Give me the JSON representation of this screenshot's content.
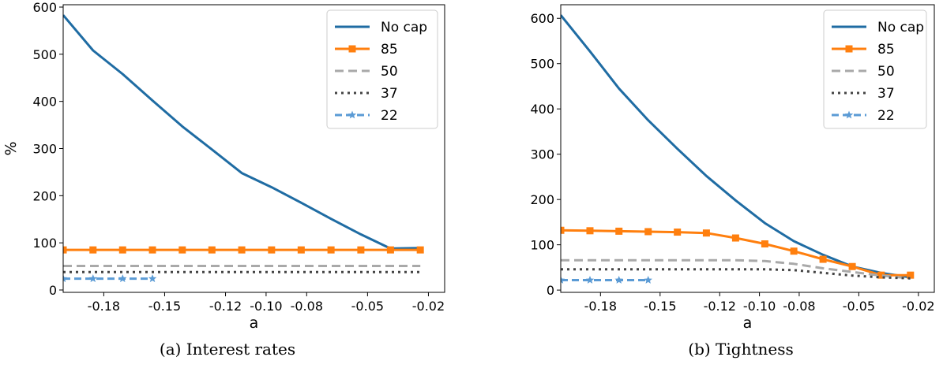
{
  "chart_data": [
    {
      "type": "line",
      "caption": "(a) Interest rates",
      "xlabel": "a",
      "ylabel": "%",
      "xlim": [
        -0.2,
        -0.012
      ],
      "ylim": [
        -5,
        605
      ],
      "xticks": [
        -0.18,
        -0.15,
        -0.12,
        -0.1,
        -0.08,
        -0.05,
        -0.02
      ],
      "xtick_labels": [
        "-0.18",
        "-0.15",
        "-0.12",
        "-0.10",
        "-0.08",
        "-0.05",
        "-0.02"
      ],
      "yticks": [
        0,
        100,
        200,
        300,
        400,
        500,
        600
      ],
      "ytick_labels": [
        "0",
        "100",
        "200",
        "300",
        "400",
        "500",
        "600"
      ],
      "legend_position": "top-right",
      "series": [
        {
          "name": "No cap",
          "color": "#1f6ca3",
          "style": "solid",
          "marker": "none",
          "x": [
            -0.2,
            -0.1853,
            -0.1707,
            -0.156,
            -0.1413,
            -0.1267,
            -0.112,
            -0.0973,
            -0.0827,
            -0.068,
            -0.0533,
            -0.0387,
            -0.024
          ],
          "y": [
            583,
            508,
            458,
            402,
            347,
            298,
            248,
            218,
            185,
            151,
            118,
            88,
            89
          ]
        },
        {
          "name": "85",
          "color": "#ff7f0e",
          "style": "solid",
          "marker": "square",
          "x": [
            -0.2,
            -0.1853,
            -0.1707,
            -0.156,
            -0.1413,
            -0.1267,
            -0.112,
            -0.0973,
            -0.0827,
            -0.068,
            -0.0533,
            -0.0387,
            -0.024
          ],
          "y": [
            85,
            85,
            85,
            85,
            85,
            85,
            85,
            85,
            85,
            85,
            85,
            85,
            85
          ]
        },
        {
          "name": "50",
          "color": "#a9a9a9",
          "style": "dashed",
          "marker": "none",
          "x": [
            -0.2,
            -0.024
          ],
          "y": [
            51,
            51
          ]
        },
        {
          "name": "37",
          "color": "#444444",
          "style": "dotted",
          "marker": "none",
          "x": [
            -0.2,
            -0.024
          ],
          "y": [
            38,
            38
          ]
        },
        {
          "name": "22",
          "color": "#5b9bd5",
          "style": "dashdot",
          "marker": "star",
          "x": [
            -0.2,
            -0.1853,
            -0.1707,
            -0.156
          ],
          "y": [
            24,
            24,
            24,
            24
          ]
        }
      ]
    },
    {
      "type": "line",
      "caption": "(b) Tightness",
      "xlabel": "a",
      "ylabel": "",
      "xlim": [
        -0.2,
        -0.012
      ],
      "ylim": [
        -5,
        630
      ],
      "xticks": [
        -0.18,
        -0.15,
        -0.12,
        -0.1,
        -0.08,
        -0.05,
        -0.02
      ],
      "xtick_labels": [
        "-0.18",
        "-0.15",
        "-0.12",
        "-0.10",
        "-0.08",
        "-0.05",
        "-0.02"
      ],
      "yticks": [
        0,
        100,
        200,
        300,
        400,
        500,
        600
      ],
      "ytick_labels": [
        "0",
        "100",
        "200",
        "300",
        "400",
        "500",
        "600"
      ],
      "legend_position": "top-right",
      "series": [
        {
          "name": "No cap",
          "color": "#1f6ca3",
          "style": "solid",
          "marker": "none",
          "x": [
            -0.2,
            -0.1853,
            -0.1707,
            -0.156,
            -0.1413,
            -0.1267,
            -0.112,
            -0.0973,
            -0.0827,
            -0.068,
            -0.0533,
            -0.0387,
            -0.024
          ],
          "y": [
            607,
            527,
            445,
            375,
            312,
            252,
            198,
            148,
            108,
            78,
            52,
            38,
            28
          ]
        },
        {
          "name": "85",
          "color": "#ff7f0e",
          "style": "solid",
          "marker": "square",
          "x": [
            -0.2,
            -0.1853,
            -0.1707,
            -0.156,
            -0.1413,
            -0.1267,
            -0.112,
            -0.0973,
            -0.0827,
            -0.068,
            -0.0533,
            -0.0387,
            -0.024
          ],
          "y": [
            132,
            131,
            130,
            129,
            128,
            126,
            115,
            102,
            86,
            68,
            52,
            33,
            33
          ]
        },
        {
          "name": "50",
          "color": "#a9a9a9",
          "style": "dashed",
          "marker": "none",
          "x": [
            -0.2,
            -0.1853,
            -0.1707,
            -0.156,
            -0.1413,
            -0.1267,
            -0.112,
            -0.0973,
            -0.0827,
            -0.068,
            -0.0533,
            -0.0387,
            -0.024
          ],
          "y": [
            66,
            66,
            66,
            66,
            66,
            66,
            66,
            64,
            58,
            48,
            40,
            32,
            26
          ]
        },
        {
          "name": "37",
          "color": "#444444",
          "style": "dotted",
          "marker": "none",
          "x": [
            -0.2,
            -0.1853,
            -0.1707,
            -0.156,
            -0.1413,
            -0.1267,
            -0.112,
            -0.0973,
            -0.0827,
            -0.068,
            -0.0533,
            -0.0387,
            -0.024
          ],
          "y": [
            46,
            46,
            46,
            46,
            46,
            46,
            46,
            46,
            44,
            38,
            32,
            28,
            26
          ]
        },
        {
          "name": "22",
          "color": "#5b9bd5",
          "style": "dashdot",
          "marker": "star",
          "x": [
            -0.2,
            -0.1853,
            -0.1707,
            -0.156
          ],
          "y": [
            22,
            22,
            22,
            22
          ]
        }
      ]
    }
  ]
}
